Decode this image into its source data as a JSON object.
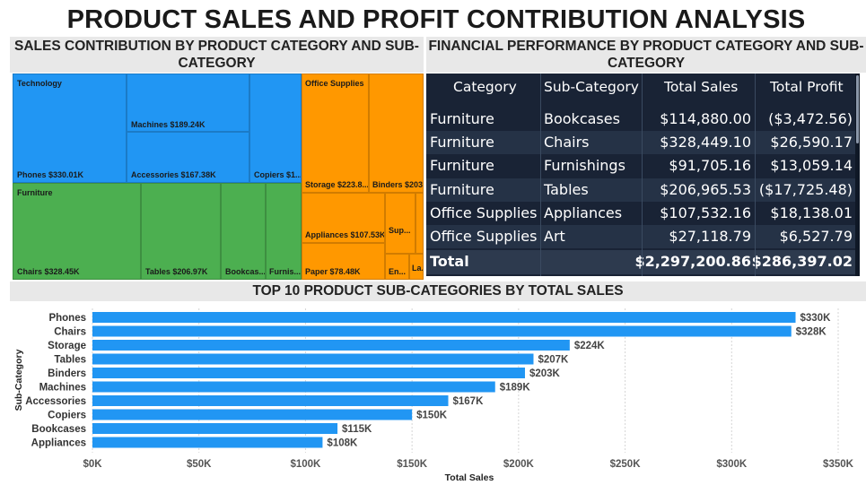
{
  "page": {
    "title": "PRODUCT SALES AND PROFIT CONTRIBUTION ANALYSIS"
  },
  "treemap": {
    "title": "SALES CONTRIBUTION BY PRODUCT CATEGORY AND SUB-CATEGORY",
    "groups": [
      {
        "name": "Technology",
        "color": "#2196f3",
        "items": [
          {
            "label": "Phones $330.01K",
            "value": 330.01
          },
          {
            "label": "Machines $189.24K",
            "value": 189.24
          },
          {
            "label": "Accessories $167.38K",
            "value": 167.38
          },
          {
            "label": "Copiers $1...",
            "value": 149.53
          }
        ]
      },
      {
        "name": "Furniture",
        "color": "#4caf50",
        "items": [
          {
            "label": "Chairs $328.45K",
            "value": 328.45
          },
          {
            "label": "Tables $206.97K",
            "value": 206.97
          },
          {
            "label": "Bookcas...",
            "value": 114.88
          },
          {
            "label": "Furnis...",
            "value": 91.71
          }
        ]
      },
      {
        "name": "Office Supplies",
        "color": "#ff9800",
        "items": [
          {
            "label": "Storage $223.8...",
            "value": 223.84
          },
          {
            "label": "Binders $203...",
            "value": 203.41
          },
          {
            "label": "Appliances $107.53K",
            "value": 107.53
          },
          {
            "label": "Paper $78.48K",
            "value": 78.48
          },
          {
            "label": "Sup...",
            "value": 46.67
          },
          {
            "label": "En...",
            "value": 16.48
          },
          {
            "label": "La...",
            "value": 12.49
          }
        ]
      }
    ]
  },
  "table": {
    "title": "FINANCIAL PERFORMANCE BY PRODUCT CATEGORY AND SUB-CATEGORY",
    "columns": [
      "Category",
      "Sub-Category",
      "Total Sales",
      "Total Profit"
    ],
    "rows": [
      [
        "Furniture",
        "Bookcases",
        "$114,880.00",
        "($3,472.56)"
      ],
      [
        "Furniture",
        "Chairs",
        "$328,449.10",
        "$26,590.17"
      ],
      [
        "Furniture",
        "Furnishings",
        "$91,705.16",
        "$13,059.14"
      ],
      [
        "Furniture",
        "Tables",
        "$206,965.53",
        "($17,725.48)"
      ],
      [
        "Office Supplies",
        "Appliances",
        "$107,532.16",
        "$18,138.01"
      ],
      [
        "Office Supplies",
        "Art",
        "$27,118.79",
        "$6,527.79"
      ]
    ],
    "total": [
      "Total",
      "",
      "$2,297,200.86",
      "$286,397.02"
    ]
  },
  "bar": {
    "title": "TOP 10 PRODUCT SUB-CATEGORIES BY TOTAL SALES"
  },
  "chart_data": {
    "type": "bar",
    "orientation": "horizontal",
    "title": "TOP 10 PRODUCT SUB-CATEGORIES BY TOTAL SALES",
    "xlabel": "Total Sales",
    "ylabel": "Sub-Category",
    "categories": [
      "Phones",
      "Chairs",
      "Storage",
      "Tables",
      "Binders",
      "Machines",
      "Accessories",
      "Copiers",
      "Bookcases",
      "Appliances"
    ],
    "values": [
      330,
      328,
      224,
      207,
      203,
      189,
      167,
      150,
      115,
      108
    ],
    "data_labels": [
      "$330K",
      "$328K",
      "$224K",
      "$207K",
      "$203K",
      "$189K",
      "$167K",
      "$150K",
      "$115K",
      "$108K"
    ],
    "xticks": [
      "$0K",
      "$50K",
      "$100K",
      "$150K",
      "$200K",
      "$250K",
      "$300K",
      "$350K"
    ],
    "xlim": [
      0,
      350
    ],
    "color": "#2196f3",
    "grid": true
  }
}
